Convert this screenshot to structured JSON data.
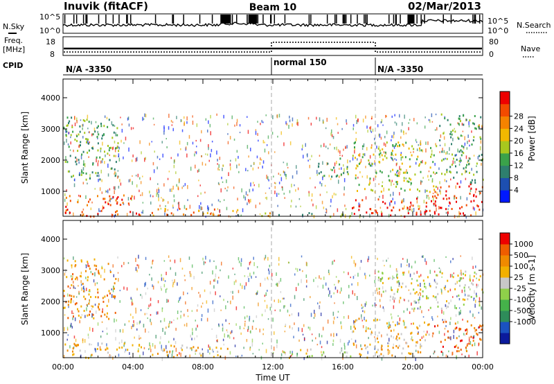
{
  "header": {
    "station": "Inuvik (fitACF)",
    "beam": "Beam 10",
    "date": "02/Mar/2013"
  },
  "top_panels": {
    "nsky_label": "N.Sky",
    "nsky_tick_top": "10^5",
    "nsky_tick_bottom": "10^0",
    "nsearch_label": "N.Search",
    "freq_label_line1": "Freq.",
    "freq_label_line2": "[MHz]",
    "freq_ticks": [
      "18",
      "8"
    ],
    "nave_ticks": [
      "80",
      "0"
    ],
    "nave_label": "Nave",
    "cpid_label": "CPID",
    "cpid_segments": [
      {
        "label": "N/A -3350",
        "start_hour": 0
      },
      {
        "label": "normal 150",
        "start_hour": 12
      },
      {
        "label": "N/A -3350",
        "start_hour": 18
      }
    ]
  },
  "chart_data": [
    {
      "type": "heatmap",
      "title": "",
      "ylabel": "Slant Range [km]",
      "xlabel": "",
      "xlim": [
        0,
        24
      ],
      "ylim": [
        200,
        4600
      ],
      "y_ticks": [
        1000,
        2000,
        3000,
        4000
      ],
      "colorbar": {
        "label": "Power [dB]",
        "ticks": [
          "4",
          "8",
          "12",
          "16",
          "20",
          "24",
          "28"
        ],
        "colors": [
          "#0018ff",
          "#1d4fb0",
          "#2e7f6e",
          "#3aa24a",
          "#a8c81e",
          "#f2b800",
          "#f58300",
          "#f24b00",
          "#ee0000"
        ]
      },
      "regions": [
        {
          "t0": 0.0,
          "t1": 4.7,
          "r0": 220,
          "r1": 900,
          "level": 7
        },
        {
          "t0": 4.7,
          "t1": 10.3,
          "r0": 220,
          "r1": 480,
          "level": 6
        },
        {
          "t0": 10.3,
          "t1": 12.0,
          "r0": 220,
          "r1": 350,
          "level": 5
        },
        {
          "t0": 12.0,
          "t1": 16.5,
          "r0": 220,
          "r1": 340,
          "level": 3
        },
        {
          "t0": 16.5,
          "t1": 21.0,
          "r0": 220,
          "r1": 800,
          "level": 8
        },
        {
          "t0": 21.0,
          "t1": 24.0,
          "r0": 220,
          "r1": 1300,
          "level": 8
        },
        {
          "t0": 0.0,
          "t1": 3.2,
          "r0": 1400,
          "r1": 3400,
          "level": 3
        },
        {
          "t0": 16.5,
          "t1": 21.5,
          "r0": 1000,
          "r1": 2600,
          "level": 4
        },
        {
          "t0": 21.5,
          "t1": 24.0,
          "r0": 1300,
          "r1": 3500,
          "level": 3
        },
        {
          "t0": 14.4,
          "t1": 16.3,
          "r0": 1500,
          "r1": 2100,
          "level": 3
        }
      ]
    },
    {
      "type": "heatmap",
      "title": "",
      "ylabel": "Slant Range [km]",
      "xlabel": "Time UT",
      "xlim": [
        0,
        24
      ],
      "ylim": [
        200,
        4600
      ],
      "y_ticks": [
        1000,
        2000,
        3000,
        4000
      ],
      "x_ticks": [
        "00:00",
        "04:00",
        "08:00",
        "12:00",
        "16:00",
        "20:00",
        "00:00"
      ],
      "colorbar": {
        "label": "Velocity [m s-1]",
        "ticks": [
          "1000",
          "500",
          "100",
          "25",
          "-25",
          "-100",
          "-500",
          "-1000"
        ],
        "colors": [
          "#0b1a9c",
          "#1b52c0",
          "#2e8c5a",
          "#45b24a",
          "#8fd04a",
          "#c8c8c8",
          "#f2b000",
          "#f08a00",
          "#ef5d00",
          "#ee0000"
        ]
      },
      "regions": [
        {
          "t0": 0.0,
          "t1": 4.0,
          "r0": 220,
          "r1": 700,
          "level": 6
        },
        {
          "t0": 4.0,
          "t1": 9.5,
          "r0": 220,
          "r1": 650,
          "level": 6
        },
        {
          "t0": 12.5,
          "t1": 16.5,
          "r0": 220,
          "r1": 500,
          "level": 5
        },
        {
          "t0": 16.5,
          "t1": 21.0,
          "r0": 220,
          "r1": 1500,
          "level": 6
        },
        {
          "t0": 21.0,
          "t1": 24.0,
          "r0": 400,
          "r1": 1400,
          "level": 8
        },
        {
          "t0": 0.0,
          "t1": 3.0,
          "r0": 1400,
          "r1": 3400,
          "level": 7
        },
        {
          "t0": 18.0,
          "t1": 24.0,
          "r0": 1800,
          "r1": 3000,
          "level": 5
        }
      ]
    }
  ]
}
